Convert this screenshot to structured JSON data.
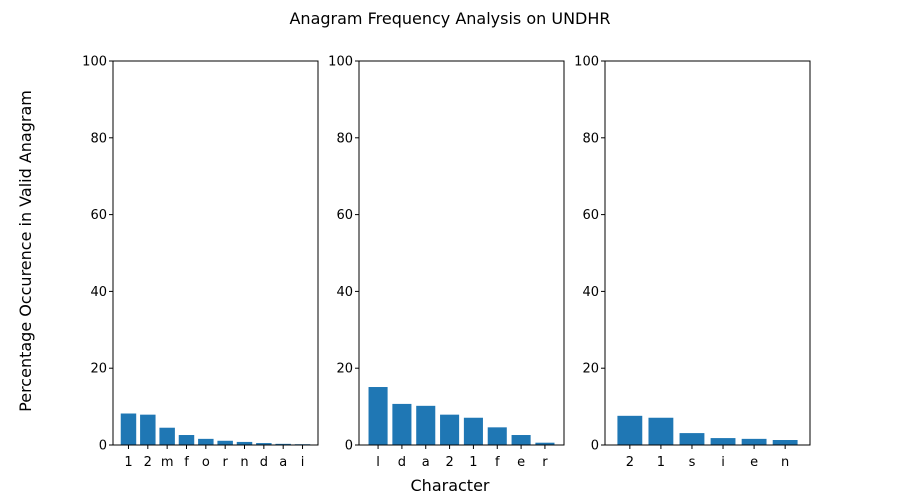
{
  "chart_data": {
    "type": "bar",
    "title": "Anagram Frequency Analysis on UNDHR",
    "xlabel": "Character",
    "ylabel": "Percentage Occurence in Valid Anagram",
    "ylim": [
      0,
      100
    ],
    "yticks": [
      0,
      20,
      40,
      60,
      80,
      100
    ],
    "grid": false,
    "bar_color": "#1f77b4",
    "subplots": [
      {
        "categories": [
          "1",
          "2",
          "m",
          "f",
          "o",
          "r",
          "n",
          "d",
          "a",
          "i"
        ],
        "values": [
          8.2,
          7.9,
          4.5,
          2.6,
          1.6,
          1.1,
          0.8,
          0.5,
          0.3,
          0.2
        ]
      },
      {
        "categories": [
          "l",
          "d",
          "a",
          "2",
          "1",
          "f",
          "e",
          "r"
        ],
        "values": [
          15.1,
          10.7,
          10.2,
          7.9,
          7.1,
          4.6,
          2.6,
          0.6
        ]
      },
      {
        "categories": [
          "2",
          "1",
          "s",
          "i",
          "e",
          "n"
        ],
        "values": [
          7.6,
          7.1,
          3.1,
          1.8,
          1.6,
          1.3
        ]
      }
    ]
  }
}
